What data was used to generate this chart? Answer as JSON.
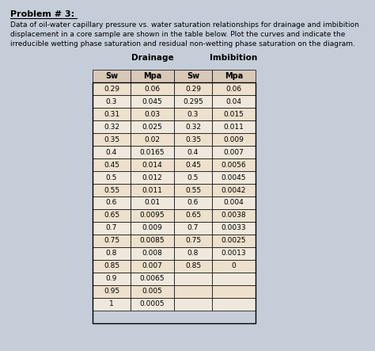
{
  "title": "Problem # 3:",
  "description_lines": [
    "Data of oil-water capillary pressure vs. water saturation relationships for drainage and imbibition",
    "displacement in a core sample are shown in the table below. Plot the curves and indicate the",
    "irreducible wetting phase saturation and residual non-wetting phase saturation on the diagram."
  ],
  "drainage_sw": [
    0.29,
    0.3,
    0.31,
    0.32,
    0.35,
    0.4,
    0.45,
    0.5,
    0.55,
    0.6,
    0.65,
    0.7,
    0.75,
    0.8,
    0.85,
    0.9,
    0.95,
    1.0
  ],
  "drainage_mpa": [
    0.06,
    0.045,
    0.03,
    0.025,
    0.02,
    0.0165,
    0.014,
    0.012,
    0.011,
    0.01,
    0.0095,
    0.009,
    0.0085,
    0.008,
    0.007,
    0.0065,
    0.005,
    0.0005
  ],
  "imbibition_sw": [
    0.29,
    0.295,
    0.3,
    0.32,
    0.35,
    0.4,
    0.45,
    0.5,
    0.55,
    0.6,
    0.65,
    0.7,
    0.75,
    0.8,
    0.85
  ],
  "imbibition_mpa": [
    0.06,
    0.04,
    0.015,
    0.011,
    0.009,
    0.007,
    0.0056,
    0.0045,
    0.0042,
    0.004,
    0.0038,
    0.0033,
    0.0025,
    0.0013,
    0.0
  ],
  "drainage_mpa_str": [
    "0.06",
    "0.045",
    "0.03",
    "0.025",
    "0.02",
    "0.0165",
    "0.014",
    "0.012",
    "0.011",
    "0.01",
    "0.0095",
    "0.009",
    "0.0085",
    "0.008",
    "0.007",
    "0.0065",
    "0.005",
    "0.0005"
  ],
  "imbibition_mpa_str": [
    "0.06",
    "0.04",
    "0.015",
    "0.011",
    "0.009",
    "0.007",
    "0.0056",
    "0.0045",
    "0.0042",
    "0.004",
    "0.0038",
    "0.0033",
    "0.0025",
    "0.0013",
    "0"
  ],
  "bg_color": "#c5cdd8",
  "table_header_color": "#d8c8b8",
  "table_row_color_a": "#ede0cc",
  "table_row_color_b": "#f0e8dc"
}
